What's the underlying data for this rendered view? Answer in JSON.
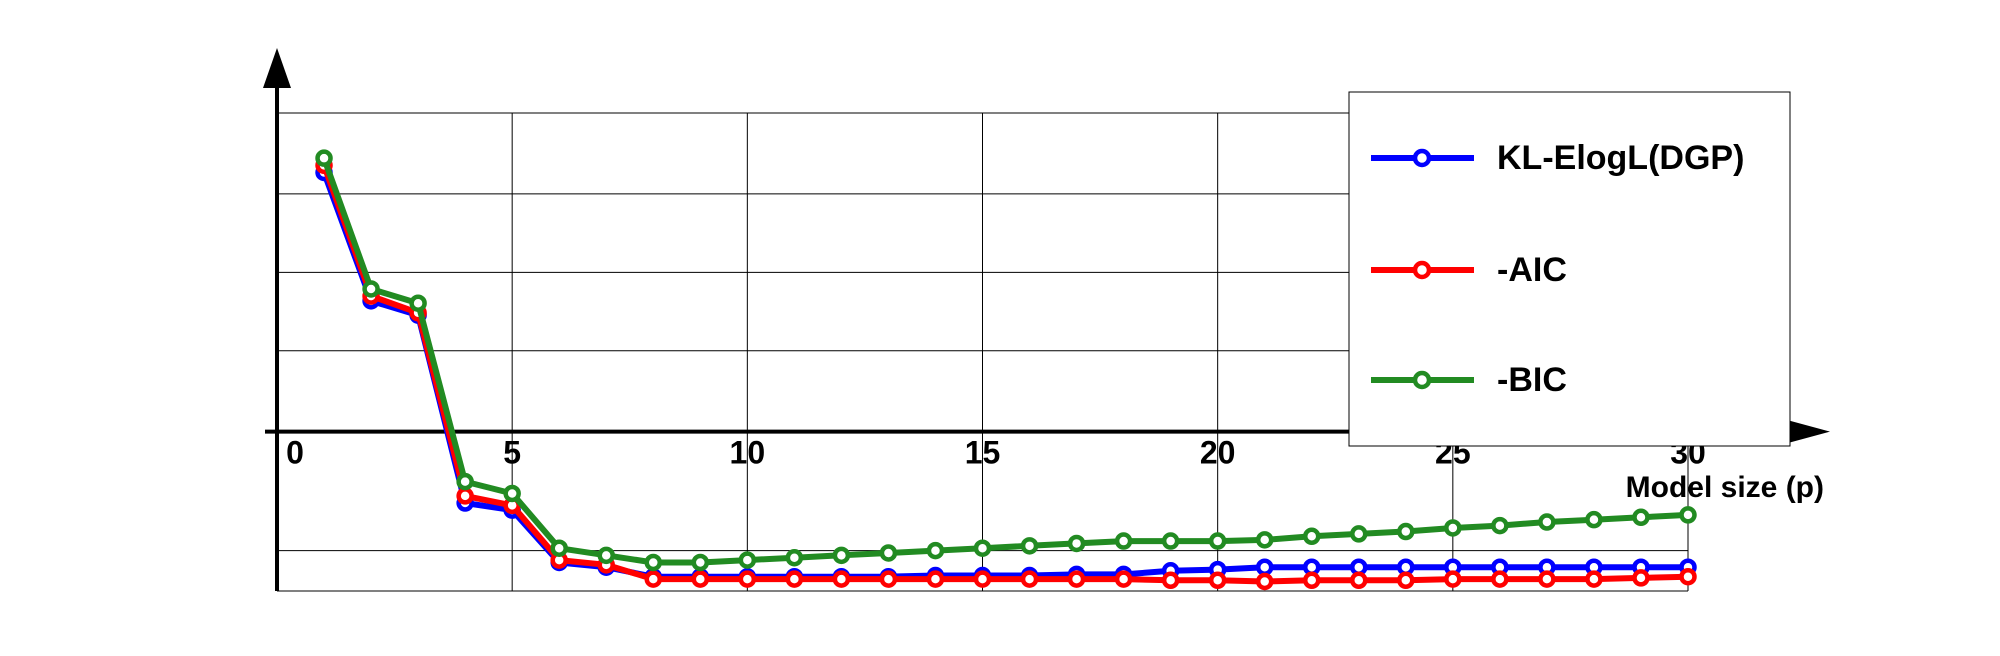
{
  "chart_data": {
    "type": "line",
    "xlabel": "Model size (p)",
    "ylabel": "",
    "xlim": [
      0,
      30
    ],
    "ylim": [
      -6.7,
      13.4
    ],
    "y_axis_origin": 0,
    "x_ticks": [
      0,
      5,
      10,
      15,
      20,
      25,
      30
    ],
    "x_tick_labels": [
      "0",
      "5",
      "10",
      "15",
      "20",
      "25",
      "30"
    ],
    "y_grid": [
      -6.7,
      -5,
      0,
      3.4,
      6.7,
      10,
      13.4
    ],
    "grid": true,
    "legend_position": "top-right",
    "x": [
      1,
      2,
      3,
      4,
      5,
      6,
      7,
      8,
      9,
      10,
      11,
      12,
      13,
      14,
      15,
      16,
      17,
      18,
      19,
      20,
      21,
      22,
      23,
      24,
      25,
      26,
      27,
      28,
      29,
      30
    ],
    "series": [
      {
        "name": "KL-ElogL(DGP)",
        "color": "#0000ff",
        "values": [
          10.9,
          5.5,
          4.9,
          -3.0,
          -3.3,
          -5.5,
          -5.7,
          -6.1,
          -6.1,
          -6.1,
          -6.1,
          -6.1,
          -6.1,
          -6.05,
          -6.05,
          -6.05,
          -6.0,
          -6.0,
          -5.85,
          -5.8,
          -5.7,
          -5.7,
          -5.7,
          -5.7,
          -5.7,
          -5.7,
          -5.7,
          -5.7,
          -5.7,
          -5.7
        ]
      },
      {
        "name": "-AIC",
        "color": "#ff0000",
        "values": [
          11.2,
          5.7,
          5.0,
          -2.7,
          -3.1,
          -5.4,
          -5.6,
          -6.2,
          -6.2,
          -6.2,
          -6.2,
          -6.2,
          -6.2,
          -6.2,
          -6.2,
          -6.2,
          -6.2,
          -6.2,
          -6.25,
          -6.25,
          -6.3,
          -6.25,
          -6.25,
          -6.25,
          -6.2,
          -6.2,
          -6.2,
          -6.2,
          -6.15,
          -6.1
        ]
      },
      {
        "name": "-BIC",
        "color": "#228b22",
        "values": [
          11.5,
          6.0,
          5.4,
          -2.1,
          -2.6,
          -4.9,
          -5.2,
          -5.5,
          -5.5,
          -5.4,
          -5.3,
          -5.2,
          -5.1,
          -5.0,
          -4.9,
          -4.8,
          -4.7,
          -4.6,
          -4.6,
          -4.6,
          -4.55,
          -4.4,
          -4.3,
          -4.2,
          -4.05,
          -3.95,
          -3.8,
          -3.7,
          -3.6,
          -3.5
        ]
      }
    ]
  }
}
